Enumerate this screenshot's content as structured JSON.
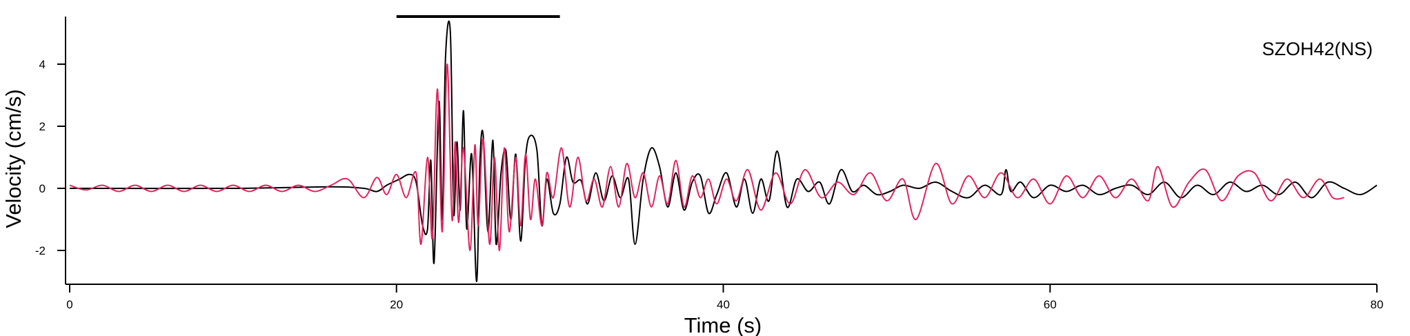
{
  "chart_data": {
    "type": "line",
    "title": "",
    "station_label": "SZOH42(NS)",
    "xlabel": "Time (s)",
    "ylabel": "Velocity (cm/s)",
    "xlim": [
      0,
      80
    ],
    "ylim": [
      -3.0,
      5.4
    ],
    "x_ticks": [
      0,
      20,
      40,
      60,
      80
    ],
    "x_tick_labels": [
      "0",
      "20",
      "40",
      "60",
      "80"
    ],
    "y_ticks": [
      -2,
      0,
      2,
      4
    ],
    "y_tick_labels": [
      "-2",
      "0",
      "2",
      "4"
    ],
    "grid": false,
    "legend": "none",
    "annotations": [
      {
        "type": "horizontal-bar",
        "x_start": 20,
        "x_end": 30,
        "color": "#000000"
      }
    ],
    "series": [
      {
        "color": "#000000",
        "x": [
          0,
          10,
          16,
          18,
          18.8,
          19.4,
          20.2,
          20.8,
          21.2,
          21.6,
          21.9,
          22.1,
          22.3,
          22.6,
          22.8,
          23.0,
          23.3,
          23.5,
          23.7,
          23.9,
          24.1,
          24.3,
          24.6,
          24.9,
          25.1,
          25.3,
          25.6,
          25.9,
          26.1,
          26.4,
          26.7,
          27.0,
          27.3,
          27.6,
          27.9,
          28.2,
          28.6,
          28.9,
          29.2,
          29.6,
          30.0,
          30.4,
          30.8,
          31.3,
          31.7,
          32.2,
          32.7,
          33.2,
          33.7,
          34.2,
          34.6,
          35.1,
          35.6,
          36.1,
          36.6,
          37.1,
          37.6,
          38.1,
          38.6,
          39.1,
          39.6,
          40.2,
          40.8,
          41.3,
          41.8,
          42.3,
          42.8,
          43.3,
          43.9,
          44.5,
          45.2,
          45.9,
          46.5,
          47.2,
          47.9,
          48.6,
          49.4,
          50.2,
          51.0,
          52.0,
          53.0,
          54.0,
          55.0,
          56.0,
          57.0,
          57.3,
          57.6,
          58.2,
          59.0,
          60.0,
          61.0,
          62.0,
          63.0,
          64.0,
          65.0,
          66.0,
          67.0,
          68.0,
          69.0,
          70.0,
          71.0,
          72.0,
          73.0,
          74.0,
          75.0,
          76.0,
          77.0,
          78.0,
          79.0,
          80.0
        ],
        "y": [
          0,
          0,
          0.05,
          0,
          -0.1,
          0.1,
          0.3,
          0.45,
          0.2,
          -1.2,
          -1.3,
          0.9,
          -2.4,
          2.8,
          -1.0,
          4.2,
          5.0,
          -0.8,
          1.5,
          -0.7,
          2.5,
          -1.3,
          1.1,
          -3.0,
          0.8,
          1.75,
          -1.4,
          1.55,
          -1.8,
          0.5,
          1.2,
          -1.0,
          1.1,
          -1.7,
          1.0,
          1.7,
          1.2,
          -1.2,
          0.3,
          -0.8,
          -0.5,
          1.0,
          0.2,
          0.25,
          -0.5,
          0.5,
          -0.4,
          0.4,
          -0.3,
          0.3,
          -1.8,
          0.3,
          1.3,
          0.7,
          -0.6,
          0.5,
          -0.7,
          0.2,
          0.4,
          -0.8,
          -0.2,
          0.5,
          -0.6,
          0.3,
          -0.8,
          0.3,
          -0.4,
          1.2,
          -0.6,
          0.3,
          -0.1,
          0.2,
          -0.5,
          0.6,
          -0.1,
          0.1,
          -0.2,
          -0.1,
          0.1,
          0.0,
          0.2,
          -0.1,
          -0.3,
          0.1,
          -0.2,
          0.6,
          -0.1,
          0.2,
          -0.3,
          0.1,
          -0.1,
          0.1,
          -0.2,
          0.0,
          0.1,
          -0.2,
          0.2,
          -0.3,
          0.1,
          -0.2,
          0.2,
          -0.1,
          0.1,
          -0.2,
          0.2,
          -0.3,
          0.2,
          0.0,
          -0.2,
          0.1
        ]
      },
      {
        "color": "#e0245e",
        "x": [
          0,
          1,
          2,
          3,
          4,
          5,
          6,
          7,
          8,
          9,
          10,
          11,
          12,
          13,
          14,
          15,
          16,
          17,
          18,
          18.8,
          19.4,
          20.0,
          20.6,
          21.2,
          21.5,
          21.9,
          22.2,
          22.5,
          22.8,
          23.1,
          23.4,
          23.6,
          23.8,
          24.1,
          24.5,
          24.8,
          25.0,
          25.3,
          25.7,
          26.0,
          26.3,
          26.6,
          26.9,
          27.3,
          27.6,
          27.9,
          28.2,
          28.5,
          28.9,
          29.2,
          29.6,
          30.1,
          30.6,
          31.1,
          31.6,
          32.1,
          32.6,
          33.1,
          33.6,
          34.1,
          34.6,
          35.1,
          35.6,
          36.1,
          36.6,
          37.1,
          37.6,
          38.1,
          38.6,
          39.1,
          39.6,
          40.2,
          40.8,
          41.5,
          42.3,
          43.2,
          44.1,
          45.0,
          46.0,
          47.0,
          48.0,
          49.0,
          50.0,
          51.0,
          51.8,
          53.0,
          54.0,
          55.0,
          56.0,
          57.0,
          58.0,
          59.0,
          60.0,
          61.0,
          62.0,
          63.0,
          64.0,
          65.0,
          66.0,
          66.6,
          67.5,
          68.5,
          69.5,
          70.5,
          71.5,
          72.5,
          73.5,
          74.5,
          75.5,
          76.5,
          77.3,
          78.0
        ],
        "y": [
          0.1,
          -0.05,
          0.1,
          -0.1,
          0.1,
          -0.1,
          0.1,
          -0.1,
          0.1,
          -0.1,
          0.1,
          -0.1,
          0.1,
          -0.1,
          0.1,
          -0.1,
          0.1,
          0.3,
          -0.3,
          0.35,
          -0.2,
          0.45,
          -0.3,
          0.5,
          -1.8,
          1.0,
          -1.6,
          3.2,
          -1.4,
          4.0,
          -1.0,
          1.5,
          -1.1,
          1.3,
          -2.0,
          1.4,
          -1.2,
          1.6,
          -1.8,
          1.0,
          -2.0,
          1.3,
          -1.4,
          1.0,
          -1.2,
          1.1,
          -1.0,
          0.3,
          -1.2,
          0.5,
          -0.3,
          1.3,
          -0.6,
          1.0,
          -0.4,
          0.3,
          -0.6,
          0.7,
          -0.6,
          0.8,
          -0.3,
          0.5,
          -0.6,
          0.4,
          -0.5,
          0.9,
          -0.6,
          0.4,
          -0.3,
          0.3,
          -0.5,
          0.3,
          -0.4,
          0.6,
          -0.7,
          0.5,
          -0.5,
          0.6,
          -0.3,
          0.2,
          -0.2,
          0.5,
          -0.4,
          0.3,
          -1.0,
          0.8,
          -0.5,
          0.4,
          -0.3,
          0.5,
          -0.3,
          0.3,
          -0.5,
          0.4,
          -0.3,
          0.4,
          -0.3,
          0.3,
          -0.4,
          0.7,
          -0.6,
          0.2,
          0.6,
          -0.4,
          0.4,
          0.5,
          -0.4,
          0.3,
          -0.3,
          0.3,
          -0.3,
          -0.3
        ]
      }
    ]
  }
}
